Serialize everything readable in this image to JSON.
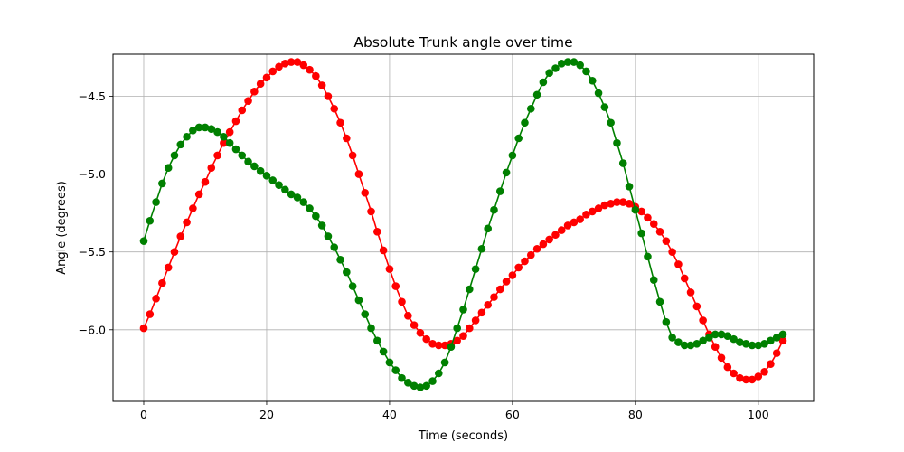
{
  "chart_data": {
    "type": "line",
    "title": "Absolute Trunk angle over time",
    "xlabel": "Time (seconds)",
    "ylabel": "Angle (degrees)",
    "xlim": [
      -5,
      109
    ],
    "ylim": [
      -6.46,
      -4.23
    ],
    "xticks": [
      0,
      20,
      40,
      60,
      80,
      100
    ],
    "yticks": [
      -6.0,
      -5.5,
      -5.0,
      -4.5
    ],
    "xtick_labels": [
      "0",
      "20",
      "40",
      "60",
      "80",
      "100"
    ],
    "ytick_labels": [
      "−6.0",
      "−5.5",
      "−5.0",
      "−4.5"
    ],
    "grid": true,
    "series": [
      {
        "color": "#ff0000",
        "marker": "circle",
        "x": [
          0,
          1,
          2,
          3,
          4,
          5,
          6,
          7,
          8,
          9,
          10,
          11,
          12,
          13,
          14,
          15,
          16,
          17,
          18,
          19,
          20,
          21,
          22,
          23,
          24,
          25,
          26,
          27,
          28,
          29,
          30,
          31,
          32,
          33,
          34,
          35,
          36,
          37,
          38,
          39,
          40,
          41,
          42,
          43,
          44,
          45,
          46,
          47,
          48,
          49,
          50,
          51,
          52,
          53,
          54,
          55,
          56,
          57,
          58,
          59,
          60,
          61,
          62,
          63,
          64,
          65,
          66,
          67,
          68,
          69,
          70,
          71,
          72,
          73,
          74,
          75,
          76,
          77,
          78,
          79,
          80,
          81,
          82,
          83,
          84,
          85,
          86,
          87,
          88,
          89,
          90,
          91,
          92,
          93,
          94,
          95,
          96,
          97,
          98,
          99,
          100,
          101,
          102,
          103,
          104
        ],
        "values": [
          -5.99,
          -5.9,
          -5.8,
          -5.7,
          -5.6,
          -5.5,
          -5.4,
          -5.31,
          -5.22,
          -5.13,
          -5.05,
          -4.96,
          -4.88,
          -4.8,
          -4.73,
          -4.66,
          -4.59,
          -4.53,
          -4.47,
          -4.42,
          -4.38,
          -4.34,
          -4.31,
          -4.29,
          -4.28,
          -4.28,
          -4.3,
          -4.33,
          -4.37,
          -4.43,
          -4.5,
          -4.58,
          -4.67,
          -4.77,
          -4.88,
          -5.0,
          -5.12,
          -5.24,
          -5.37,
          -5.49,
          -5.61,
          -5.72,
          -5.82,
          -5.91,
          -5.97,
          -6.02,
          -6.06,
          -6.09,
          -6.1,
          -6.1,
          -6.09,
          -6.07,
          -6.04,
          -5.99,
          -5.94,
          -5.89,
          -5.84,
          -5.79,
          -5.74,
          -5.69,
          -5.65,
          -5.6,
          -5.56,
          -5.52,
          -5.48,
          -5.45,
          -5.42,
          -5.39,
          -5.36,
          -5.33,
          -5.31,
          -5.29,
          -5.26,
          -5.24,
          -5.22,
          -5.2,
          -5.19,
          -5.18,
          -5.18,
          -5.19,
          -5.21,
          -5.24,
          -5.28,
          -5.32,
          -5.37,
          -5.43,
          -5.5,
          -5.58,
          -5.67,
          -5.76,
          -5.85,
          -5.94,
          -6.03,
          -6.11,
          -6.18,
          -6.24,
          -6.28,
          -6.31,
          -6.32,
          -6.32,
          -6.3,
          -6.27,
          -6.22,
          -6.15,
          -6.07
        ]
      },
      {
        "color": "#008000",
        "marker": "circle",
        "x": [
          0,
          1,
          2,
          3,
          4,
          5,
          6,
          7,
          8,
          9,
          10,
          11,
          12,
          13,
          14,
          15,
          16,
          17,
          18,
          19,
          20,
          21,
          22,
          23,
          24,
          25,
          26,
          27,
          28,
          29,
          30,
          31,
          32,
          33,
          34,
          35,
          36,
          37,
          38,
          39,
          40,
          41,
          42,
          43,
          44,
          45,
          46,
          47,
          48,
          49,
          50,
          51,
          52,
          53,
          54,
          55,
          56,
          57,
          58,
          59,
          60,
          61,
          62,
          63,
          64,
          65,
          66,
          67,
          68,
          69,
          70,
          71,
          72,
          73,
          74,
          75,
          76,
          77,
          78,
          79,
          80,
          81,
          82,
          83,
          84,
          85,
          86,
          87,
          88,
          89,
          90,
          91,
          92,
          93,
          94,
          95,
          96,
          97,
          98,
          99,
          100,
          101,
          102,
          103,
          104
        ],
        "values": [
          -5.43,
          -5.3,
          -5.18,
          -5.06,
          -4.96,
          -4.88,
          -4.81,
          -4.76,
          -4.72,
          -4.7,
          -4.7,
          -4.71,
          -4.73,
          -4.76,
          -4.8,
          -4.84,
          -4.88,
          -4.92,
          -4.95,
          -4.98,
          -5.01,
          -5.04,
          -5.07,
          -5.1,
          -5.13,
          -5.15,
          -5.18,
          -5.22,
          -5.27,
          -5.33,
          -5.4,
          -5.47,
          -5.55,
          -5.63,
          -5.72,
          -5.81,
          -5.9,
          -5.99,
          -6.07,
          -6.14,
          -6.21,
          -6.26,
          -6.31,
          -6.34,
          -6.36,
          -6.37,
          -6.36,
          -6.33,
          -6.28,
          -6.21,
          -6.11,
          -5.99,
          -5.87,
          -5.74,
          -5.61,
          -5.48,
          -5.35,
          -5.23,
          -5.11,
          -4.99,
          -4.88,
          -4.77,
          -4.67,
          -4.58,
          -4.49,
          -4.41,
          -4.35,
          -4.32,
          -4.29,
          -4.28,
          -4.28,
          -4.3,
          -4.34,
          -4.4,
          -4.48,
          -4.57,
          -4.67,
          -4.8,
          -4.93,
          -5.08,
          -5.23,
          -5.38,
          -5.53,
          -5.68,
          -5.82,
          -5.95,
          -6.05,
          -6.08,
          -6.1,
          -6.1,
          -6.09,
          -6.07,
          -6.05,
          -6.03,
          -6.03,
          -6.04,
          -6.06,
          -6.08,
          -6.09,
          -6.1,
          -6.1,
          -6.09,
          -6.07,
          -6.05,
          -6.03
        ]
      }
    ]
  }
}
